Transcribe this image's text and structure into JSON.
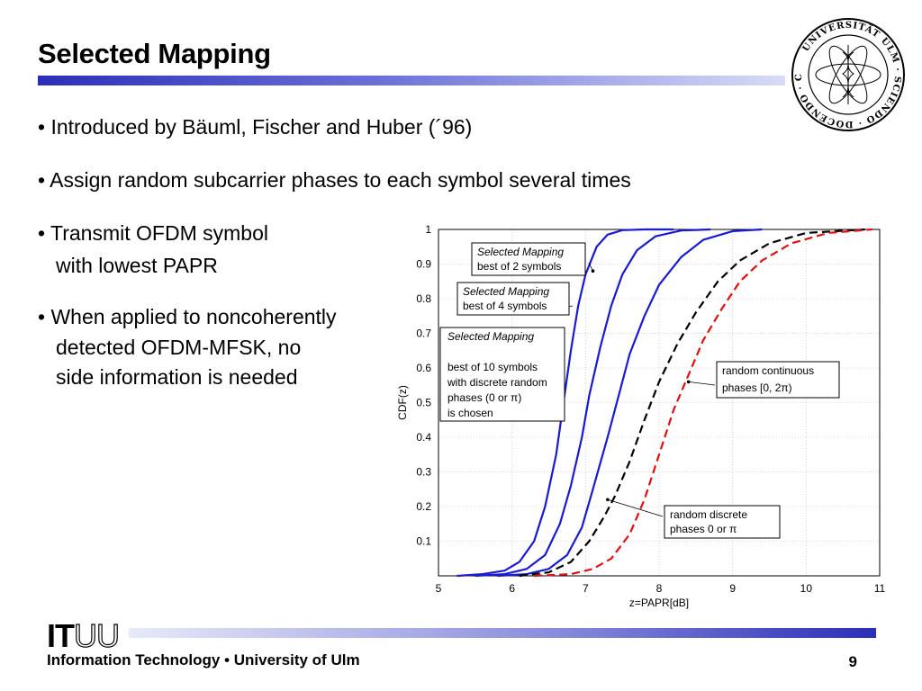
{
  "slide": {
    "title": "Selected Mapping",
    "bullets": [
      "• Introduced by Bäuml, Fischer and Huber (´96)",
      "• Assign random subcarrier phases to each symbol several times",
      "• Transmit OFDM symbol",
      "with lowest PAPR",
      "• When applied to noncoherently",
      "detected OFDM-MFSK, no",
      "side information is needed"
    ],
    "footer": "Information Technology • University of Ulm",
    "logo_it": "IT",
    "logo_uu": "UU",
    "page_number": "9",
    "seal_text": "UNIVERSITÄT ULM · SCIENDO · DOCENDO · CURANDO ·"
  },
  "chart_data": {
    "type": "line",
    "xlabel": "z=PAPR[dB]",
    "ylabel": "CDF(z)",
    "xlim": [
      5,
      11
    ],
    "ylim": [
      0,
      1
    ],
    "xticks": [
      5,
      6,
      7,
      8,
      9,
      10,
      11
    ],
    "yticks": [
      0.1,
      0.2,
      0.3,
      0.4,
      0.5,
      0.6,
      0.7,
      0.8,
      0.9,
      1
    ],
    "grid": true,
    "series": [
      {
        "style": "solid",
        "color": "#1a1ad0",
        "x": [
          5.25,
          5.6,
          5.9,
          6.1,
          6.3,
          6.45,
          6.6,
          6.7,
          6.8,
          6.9,
          7.0,
          7.15,
          7.3,
          7.5,
          7.8,
          8.2
        ],
        "y": [
          0.0,
          0.005,
          0.015,
          0.04,
          0.1,
          0.2,
          0.35,
          0.5,
          0.65,
          0.78,
          0.87,
          0.95,
          0.985,
          0.998,
          1.0,
          1.0
        ]
      },
      {
        "style": "solid",
        "color": "#1a1ad0",
        "x": [
          5.5,
          5.9,
          6.2,
          6.45,
          6.65,
          6.8,
          6.95,
          7.05,
          7.2,
          7.35,
          7.5,
          7.7,
          7.95,
          8.3,
          8.7
        ],
        "y": [
          0.0,
          0.005,
          0.02,
          0.06,
          0.15,
          0.26,
          0.4,
          0.52,
          0.66,
          0.78,
          0.87,
          0.94,
          0.98,
          0.997,
          1.0
        ]
      },
      {
        "style": "solid",
        "color": "#1a1ad0",
        "x": [
          5.8,
          6.2,
          6.5,
          6.75,
          6.95,
          7.1,
          7.3,
          7.45,
          7.6,
          7.8,
          8.0,
          8.3,
          8.6,
          9.0,
          9.4
        ],
        "y": [
          0.0,
          0.005,
          0.02,
          0.06,
          0.14,
          0.25,
          0.4,
          0.52,
          0.64,
          0.75,
          0.84,
          0.92,
          0.97,
          0.995,
          1.0
        ]
      },
      {
        "style": "dashed",
        "color": "#000000",
        "x": [
          6.1,
          6.5,
          6.8,
          7.05,
          7.25,
          7.4,
          7.6,
          7.8,
          8.0,
          8.25,
          8.5,
          8.8,
          9.1,
          9.5,
          10.0,
          10.8
        ],
        "y": [
          0.0,
          0.01,
          0.04,
          0.1,
          0.17,
          0.23,
          0.33,
          0.45,
          0.56,
          0.67,
          0.76,
          0.85,
          0.91,
          0.96,
          0.99,
          1.0
        ]
      },
      {
        "style": "dashed",
        "color": "#e01010",
        "x": [
          6.3,
          6.8,
          7.1,
          7.35,
          7.6,
          7.8,
          8.0,
          8.2,
          8.4,
          8.6,
          8.85,
          9.1,
          9.4,
          9.8,
          10.3,
          10.9
        ],
        "y": [
          0.0,
          0.005,
          0.02,
          0.05,
          0.12,
          0.22,
          0.35,
          0.48,
          0.58,
          0.68,
          0.77,
          0.85,
          0.91,
          0.96,
          0.99,
          1.0
        ]
      }
    ],
    "annotations": [
      {
        "lines": [
          "Selected Mapping",
          "best of 2 symbols"
        ],
        "italic_first": true
      },
      {
        "lines": [
          "Selected Mapping",
          "best of 4 symbols"
        ],
        "italic_first": true
      },
      {
        "lines": [
          "Selected Mapping",
          "",
          "best of 10 symbols",
          "with discrete random",
          "phases (0 or π)",
          "is chosen"
        ],
        "italic_first": true
      },
      {
        "lines": [
          "random continuous",
          "phases [0, 2π)"
        ],
        "italic_first": false
      },
      {
        "lines": [
          "random discrete",
          "phases 0 or π"
        ],
        "italic_first": false
      }
    ]
  }
}
